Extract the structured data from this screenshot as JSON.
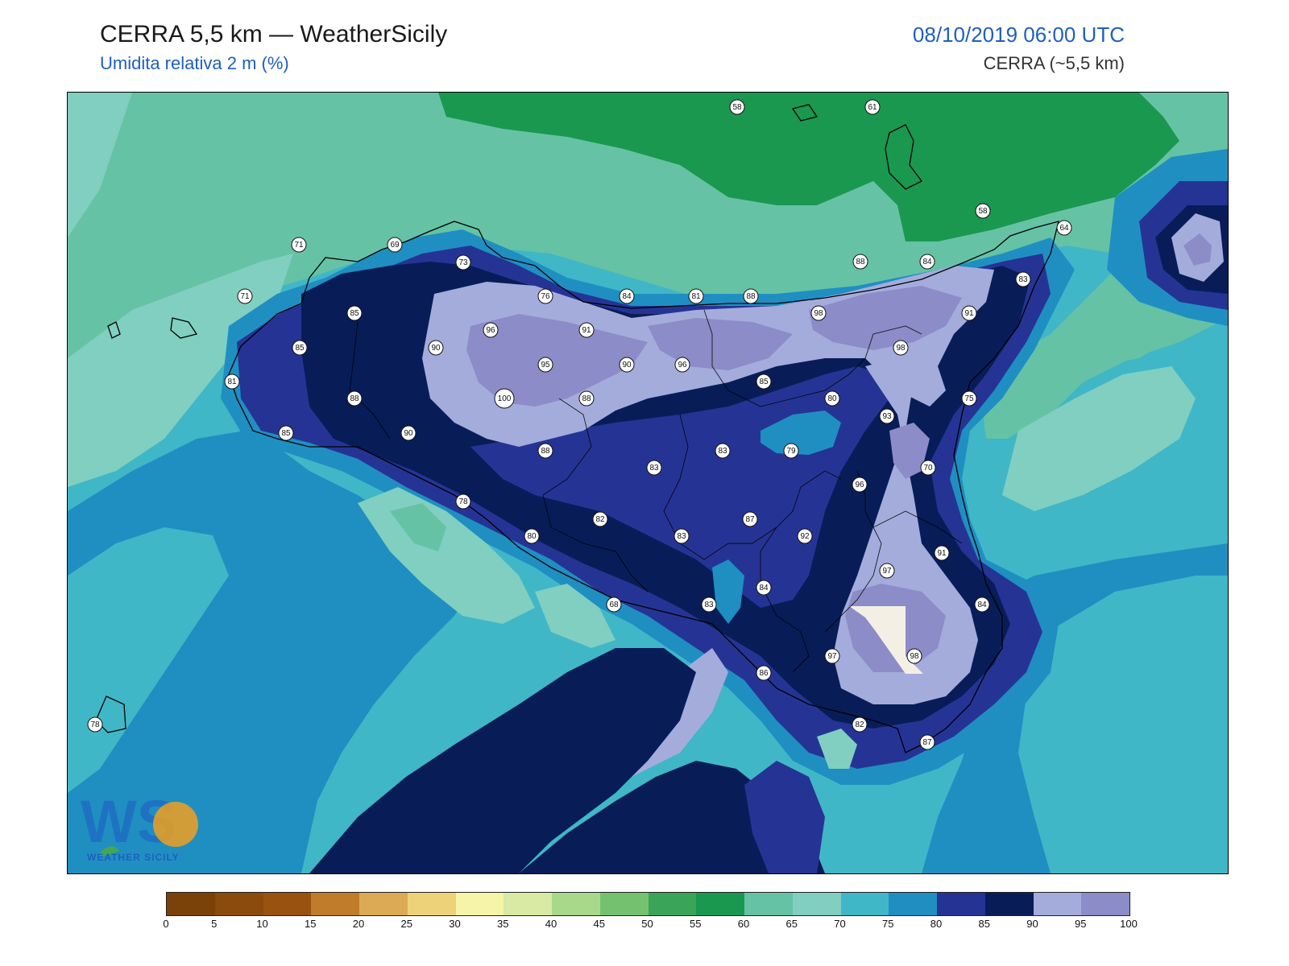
{
  "header": {
    "title": "CERRA 5,5 km — WeatherSicily",
    "subtitle": "Umidita relativa 2 m (%)",
    "datetime": "08/10/2019 06:00 UTC",
    "model": "CERRA (~5,5 km)"
  },
  "logo": {
    "text": "WEATHER SICILY",
    "letters": "WS"
  },
  "colorbar": {
    "ticks": [
      "0",
      "5",
      "10",
      "15",
      "20",
      "25",
      "30",
      "35",
      "40",
      "45",
      "50",
      "55",
      "60",
      "65",
      "70",
      "75",
      "80",
      "85",
      "90",
      "95",
      "100"
    ],
    "colors": [
      "#7a4208",
      "#8a4b0c",
      "#9a520f",
      "#c07c2a",
      "#dcaa55",
      "#eed27a",
      "#f6f4a6",
      "#d8eaa4",
      "#a8d98a",
      "#74c270",
      "#3aa558",
      "#1a9850",
      "#66c2a5",
      "#80cfc0",
      "#40b7c7",
      "#1f8fc2",
      "#253494",
      "#081d58",
      "#a4acdc",
      "#8c8cc8"
    ]
  },
  "stations": [
    {
      "label": "58"
    },
    {
      "label": "61"
    },
    {
      "label": "58"
    },
    {
      "label": "64"
    },
    {
      "label": "71"
    },
    {
      "label": "69"
    },
    {
      "label": "73"
    },
    {
      "label": "88"
    },
    {
      "label": "84"
    },
    {
      "label": "83"
    },
    {
      "label": "71"
    },
    {
      "label": "85"
    },
    {
      "label": "76"
    },
    {
      "label": "84"
    },
    {
      "label": "81"
    },
    {
      "label": "88"
    },
    {
      "label": "98"
    },
    {
      "label": "91"
    },
    {
      "label": "96"
    },
    {
      "label": "91"
    },
    {
      "label": "85"
    },
    {
      "label": "90"
    },
    {
      "label": "95"
    },
    {
      "label": "90"
    },
    {
      "label": "96"
    },
    {
      "label": "98"
    },
    {
      "label": "81"
    },
    {
      "label": "88"
    },
    {
      "label": "100"
    },
    {
      "label": "88"
    },
    {
      "label": "85"
    },
    {
      "label": "80"
    },
    {
      "label": "75"
    },
    {
      "label": "85"
    },
    {
      "label": "90"
    },
    {
      "label": "93"
    },
    {
      "label": "88"
    },
    {
      "label": "83"
    },
    {
      "label": "79"
    },
    {
      "label": "83"
    },
    {
      "label": "70"
    },
    {
      "label": "96"
    },
    {
      "label": "78"
    },
    {
      "label": "82"
    },
    {
      "label": "87"
    },
    {
      "label": "80"
    },
    {
      "label": "83"
    },
    {
      "label": "92"
    },
    {
      "label": "91"
    },
    {
      "label": "97"
    },
    {
      "label": "84"
    },
    {
      "label": "68"
    },
    {
      "label": "83"
    },
    {
      "label": "84"
    },
    {
      "label": "97"
    },
    {
      "label": "98"
    },
    {
      "label": "86"
    },
    {
      "label": "82"
    },
    {
      "label": "87"
    },
    {
      "label": "78"
    }
  ]
}
